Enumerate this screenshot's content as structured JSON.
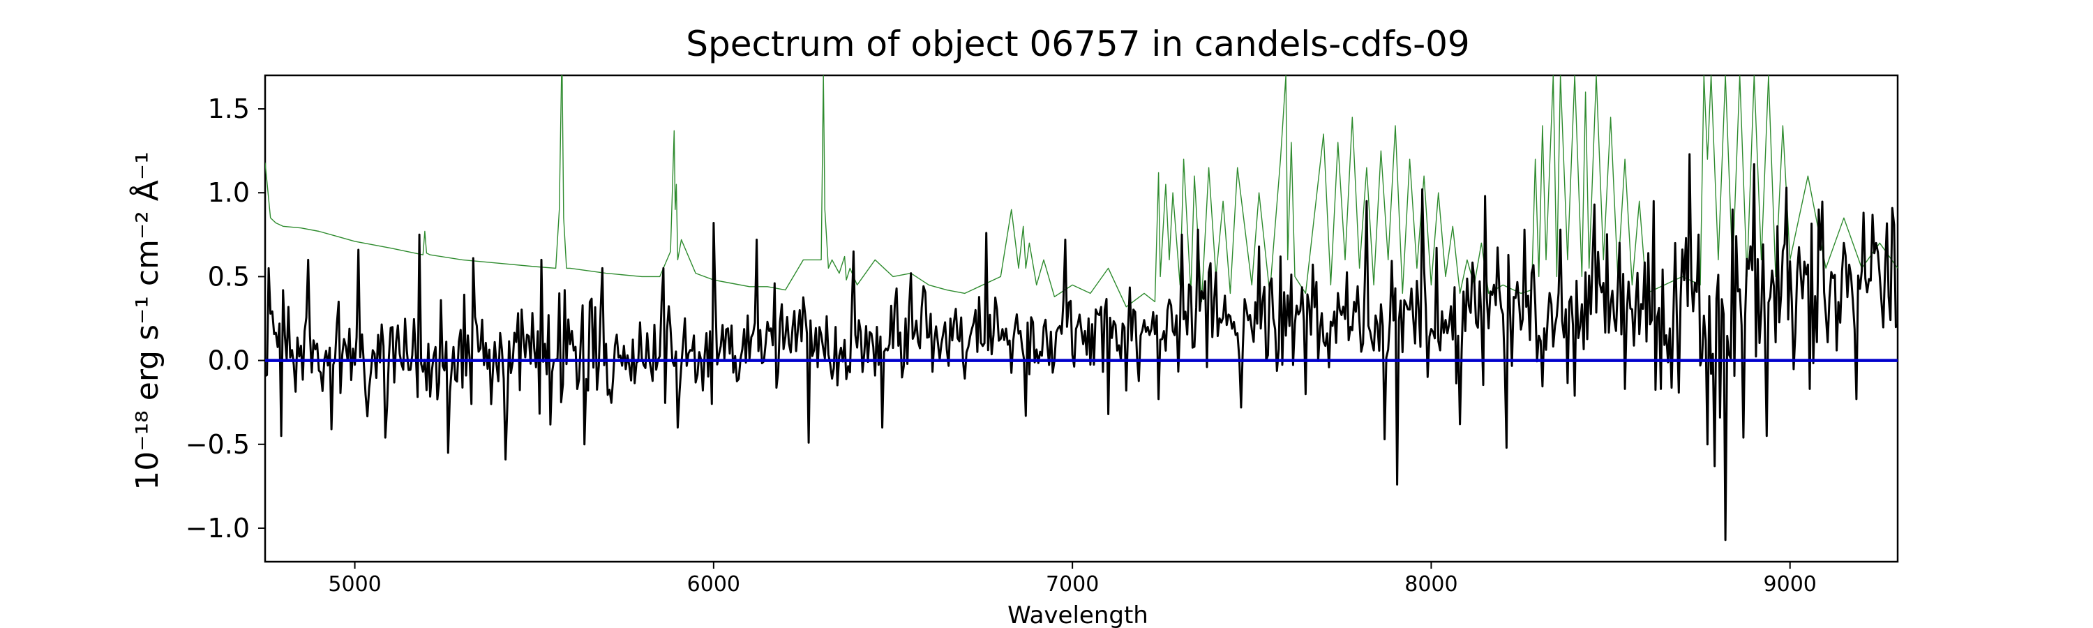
{
  "chart_data": {
    "type": "line",
    "title": "Spectrum of object 06757 in candels-cdfs-09",
    "xlabel": "Wavelength",
    "ylabel": "10⁻¹⁸ erg s⁻¹ cm⁻² Å⁻¹",
    "xlim": [
      4750,
      9300
    ],
    "ylim": [
      -1.2,
      1.7
    ],
    "x_ticks": [
      5000,
      6000,
      7000,
      8000,
      9000
    ],
    "y_ticks": [
      -1.0,
      -0.5,
      0.0,
      0.5,
      1.0,
      1.5
    ],
    "x_tick_labels": [
      "5000",
      "6000",
      "7000",
      "8000",
      "9000"
    ],
    "y_tick_labels": [
      "−1.0",
      "−0.5",
      "0.0",
      "0.5",
      "1.0",
      "1.5"
    ],
    "grid": false,
    "legend": "none",
    "series": [
      {
        "role": "error",
        "color": "#2e8b2e",
        "x": [
          4750,
          4765,
          4780,
          4800,
          4850,
          4900,
          4950,
          5000,
          5100,
          5190,
          5195,
          5200,
          5210,
          5300,
          5400,
          5500,
          5560,
          5570,
          5576,
          5578,
          5582,
          5590,
          5600,
          5700,
          5800,
          5850,
          5880,
          5890,
          5893,
          5896,
          5900,
          5910,
          5950,
          6000,
          6050,
          6100,
          6150,
          6200,
          6250,
          6300,
          6306,
          6310,
          6320,
          6330,
          6350,
          6365,
          6370,
          6380,
          6400,
          6450,
          6500,
          6550,
          6600,
          6650,
          6700,
          6800,
          6830,
          6850,
          6863,
          6870,
          6880,
          6900,
          6920,
          6950,
          7000,
          7050,
          7100,
          7150,
          7200,
          7230,
          7240,
          7245,
          7260,
          7270,
          7280,
          7300,
          7310,
          7330,
          7340,
          7360,
          7380,
          7400,
          7420,
          7440,
          7460,
          7500,
          7520,
          7550,
          7580,
          7595,
          7600,
          7610,
          7620,
          7650,
          7700,
          7720,
          7740,
          7760,
          7780,
          7800,
          7820,
          7840,
          7860,
          7880,
          7900,
          7920,
          7940,
          7960,
          7980,
          8000,
          8020,
          8040,
          8060,
          8080,
          8100,
          8120,
          8140,
          8160,
          8200,
          8250,
          8280,
          8290,
          8300,
          8310,
          8320,
          8340,
          8350,
          8360,
          8380,
          8400,
          8420,
          8430,
          8440,
          8460,
          8480,
          8500,
          8520,
          8540,
          8560,
          8580,
          8600,
          8650,
          8700,
          8750,
          8760,
          8770,
          8780,
          8800,
          8820,
          8840,
          8860,
          8880,
          8900,
          8920,
          8940,
          8960,
          8980,
          9000,
          9050,
          9100,
          9150,
          9200,
          9250,
          9300
        ],
        "y": [
          1.18,
          0.85,
          0.82,
          0.8,
          0.79,
          0.77,
          0.74,
          0.71,
          0.67,
          0.63,
          0.77,
          0.64,
          0.63,
          0.6,
          0.58,
          0.56,
          0.55,
          0.9,
          1.7,
          1.7,
          0.85,
          0.55,
          0.55,
          0.52,
          0.5,
          0.5,
          0.65,
          1.37,
          0.9,
          1.05,
          0.6,
          0.72,
          0.52,
          0.48,
          0.46,
          0.44,
          0.44,
          0.42,
          0.6,
          0.6,
          1.7,
          0.9,
          0.55,
          0.6,
          0.52,
          0.62,
          0.48,
          0.55,
          0.45,
          0.6,
          0.5,
          0.52,
          0.45,
          0.42,
          0.4,
          0.5,
          0.9,
          0.55,
          0.8,
          0.55,
          0.7,
          0.45,
          0.6,
          0.38,
          0.45,
          0.4,
          0.55,
          0.32,
          0.4,
          0.35,
          1.12,
          0.5,
          1.05,
          0.6,
          1.0,
          0.45,
          1.2,
          0.4,
          1.1,
          0.35,
          1.15,
          0.5,
          0.95,
          0.4,
          1.15,
          0.45,
          1.0,
          0.4,
          1.2,
          1.7,
          0.6,
          1.3,
          0.5,
          0.4,
          1.35,
          0.45,
          1.3,
          0.6,
          1.45,
          0.55,
          1.15,
          0.45,
          1.25,
          0.6,
          1.4,
          0.4,
          1.2,
          0.55,
          1.1,
          0.45,
          1.0,
          0.5,
          0.8,
          0.4,
          0.6,
          0.45,
          0.7,
          0.4,
          0.45,
          0.4,
          0.42,
          1.2,
          0.5,
          1.4,
          0.6,
          1.7,
          0.5,
          1.7,
          0.6,
          1.7,
          0.5,
          1.6,
          0.55,
          1.7,
          0.6,
          1.45,
          0.5,
          1.2,
          0.45,
          0.95,
          0.4,
          0.45,
          0.5,
          0.45,
          1.7,
          1.2,
          1.7,
          0.6,
          1.7,
          0.55,
          1.7,
          0.5,
          1.7,
          0.6,
          1.7,
          0.5,
          1.4,
          0.6,
          1.1,
          0.55,
          0.85,
          0.55,
          0.7,
          0.55
        ]
      },
      {
        "role": "flux",
        "color": "#000000",
        "seed": 6757,
        "x_start": 4750,
        "x_end": 9300,
        "x_step": 5,
        "baseline_x": [
          4750,
          5000,
          5500,
          6000,
          6500,
          7000,
          7200,
          7500,
          8000,
          8500,
          8700,
          9000,
          9300
        ],
        "baseline_y": [
          0.05,
          0.02,
          0.03,
          0.07,
          0.12,
          0.15,
          0.16,
          0.22,
          0.26,
          0.34,
          0.32,
          0.4,
          0.46
        ],
        "noise_x": [
          4750,
          5000,
          5500,
          6000,
          6500,
          7000,
          7200,
          7500,
          8000,
          8500,
          8700,
          9000,
          9300
        ],
        "noise_y": [
          0.3,
          0.28,
          0.26,
          0.24,
          0.22,
          0.2,
          0.24,
          0.26,
          0.3,
          0.33,
          0.45,
          0.38,
          0.35
        ],
        "features_x": [
          4762,
          4795,
          4870,
          4935,
          5010,
          5085,
          5180,
          5260,
          5330,
          5420,
          5520,
          5570,
          5640,
          5690,
          5860,
          5900,
          6000,
          6120,
          6170,
          6240,
          6265,
          6390,
          6470,
          6550,
          6760,
          6870,
          6980,
          7100,
          7238,
          7265,
          7305,
          7350,
          7385,
          7470,
          7520,
          7580,
          7650,
          7820,
          7870,
          7903,
          7975,
          8080,
          8150,
          8212,
          8260,
          8360,
          8400,
          8455,
          8540,
          8620,
          8640,
          8720,
          8745,
          8770,
          8790,
          8805,
          8822,
          8840,
          8870,
          8900,
          8935,
          8965,
          8990,
          9055,
          9085,
          9150,
          9185,
          9240,
          9290
        ],
        "features_y": [
          0.55,
          -0.45,
          0.6,
          -0.41,
          0.66,
          -0.46,
          0.75,
          -0.55,
          0.61,
          -0.59,
          0.6,
          0.4,
          -0.5,
          0.55,
          0.55,
          -0.4,
          0.82,
          0.72,
          0.46,
          0.3,
          -0.49,
          0.65,
          -0.4,
          0.52,
          0.76,
          -0.33,
          0.72,
          -0.32,
          -0.23,
          0.3,
          0.75,
          0.78,
          0.58,
          -0.28,
          0.68,
          0.62,
          -0.2,
          0.95,
          -0.47,
          -0.74,
          1.02,
          -0.38,
          0.98,
          -0.52,
          0.78,
          0.78,
          -0.21,
          0.93,
          -0.17,
          0.95,
          -0.17,
          1.23,
          0.75,
          -0.5,
          -0.63,
          -0.34,
          -1.07,
          0.9,
          -0.46,
          1.17,
          -0.45,
          0.8,
          1.03,
          -0.17,
          0.66,
          0.7,
          -0.23,
          0.7,
          0.81
        ]
      },
      {
        "role": "zero",
        "color": "#0000cc",
        "x": [
          4750,
          9300
        ],
        "y": [
          0,
          0
        ]
      }
    ]
  }
}
